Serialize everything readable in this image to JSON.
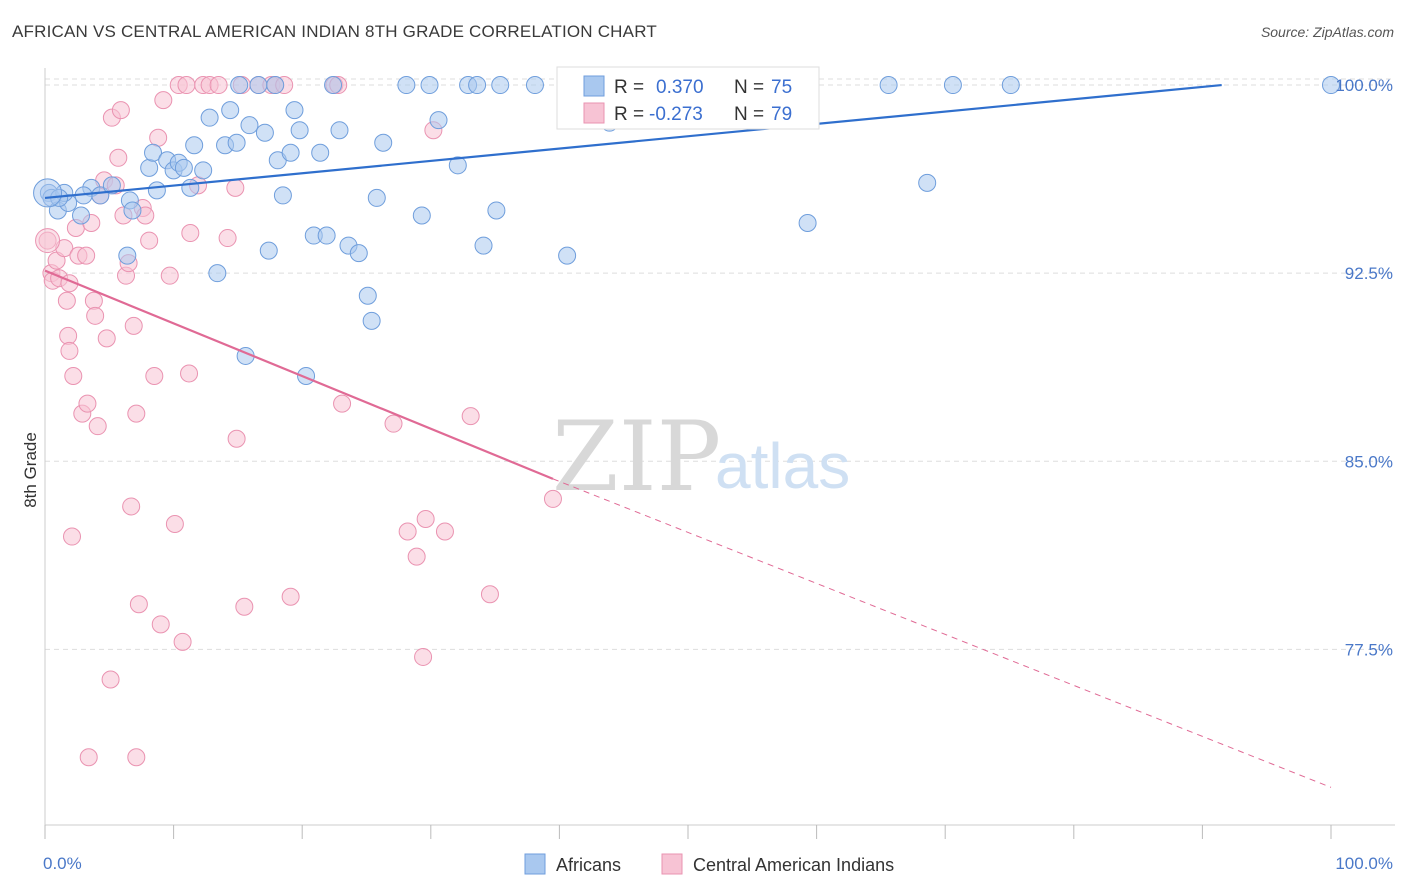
{
  "title": "AFRICAN VS CENTRAL AMERICAN INDIAN 8TH GRADE CORRELATION CHART",
  "source": "Source: ZipAtlas.com",
  "watermark": {
    "zip": "ZIP",
    "atlas": "atlas"
  },
  "legend": {
    "r_label": "R =",
    "n_label": "N =",
    "rows": [
      {
        "r": "0.370",
        "n": "75",
        "color": "#7aaee8"
      },
      {
        "r": "-0.273",
        "n": "79",
        "color": "#f4a7c0"
      }
    ]
  },
  "bottom_legend": [
    "Africans",
    "Central American Indians"
  ],
  "colors": {
    "blue_fill": "#a9c8ef",
    "blue_stroke": "#6f9edc",
    "blue_line": "#2f6fcd",
    "pink_fill": "#f7c3d4",
    "pink_stroke": "#ea93b1",
    "pink_line": "#e06a95",
    "grid": "#dddddd",
    "axis_text": "#4a78c8"
  },
  "chart_data": {
    "type": "scatter",
    "title": "AFRICAN VS CENTRAL AMERICAN INDIAN 8TH GRADE CORRELATION CHART",
    "xlabel": "",
    "ylabel": "8th Grade",
    "xlim": [
      0,
      100
    ],
    "ylim": [
      70.5,
      100.6
    ],
    "x_tick_labels": [
      "0.0%",
      "100.0%"
    ],
    "y_ticks": [
      77.5,
      85.0,
      92.5,
      100.0
    ],
    "y_tick_labels": [
      "77.5%",
      "85.0%",
      "92.5%",
      "100.0%"
    ],
    "grid": true,
    "legend_position": "top-center",
    "series": [
      {
        "name": "Africans",
        "r": 0.37,
        "n": 75,
        "trend": {
          "x": [
            0,
            91.5
          ],
          "y": [
            95.5,
            100.0
          ],
          "style": "solid"
        },
        "points": [
          [
            0.3,
            95.7
          ],
          [
            0.5,
            95.5
          ],
          [
            1.0,
            95.0
          ],
          [
            1.8,
            95.3
          ],
          [
            2.8,
            94.8
          ],
          [
            3.6,
            95.9
          ],
          [
            4.3,
            95.6
          ],
          [
            3.0,
            95.6
          ],
          [
            1.5,
            95.7
          ],
          [
            5.2,
            96.0
          ],
          [
            6.6,
            95.4
          ],
          [
            6.4,
            93.2
          ],
          [
            6.8,
            95.0
          ],
          [
            8.1,
            96.7
          ],
          [
            8.4,
            97.3
          ],
          [
            8.7,
            95.8
          ],
          [
            9.5,
            97.0
          ],
          [
            10.0,
            96.6
          ],
          [
            10.4,
            96.9
          ],
          [
            10.8,
            96.7
          ],
          [
            11.3,
            95.9
          ],
          [
            11.6,
            97.6
          ],
          [
            12.3,
            96.6
          ],
          [
            12.8,
            98.7
          ],
          [
            13.4,
            92.5
          ],
          [
            14.0,
            97.6
          ],
          [
            14.4,
            99.0
          ],
          [
            14.9,
            97.7
          ],
          [
            15.1,
            100.0
          ],
          [
            15.6,
            89.2
          ],
          [
            15.9,
            98.4
          ],
          [
            16.6,
            100.0
          ],
          [
            17.1,
            98.1
          ],
          [
            17.4,
            93.4
          ],
          [
            17.9,
            100.0
          ],
          [
            18.1,
            97.0
          ],
          [
            18.5,
            95.6
          ],
          [
            19.1,
            97.3
          ],
          [
            19.4,
            99.0
          ],
          [
            19.8,
            98.2
          ],
          [
            20.9,
            94.0
          ],
          [
            21.4,
            97.3
          ],
          [
            21.9,
            94.0
          ],
          [
            22.4,
            100.0
          ],
          [
            22.9,
            98.2
          ],
          [
            23.6,
            93.6
          ],
          [
            24.4,
            93.3
          ],
          [
            25.1,
            91.6
          ],
          [
            25.4,
            90.6
          ],
          [
            25.8,
            95.5
          ],
          [
            26.3,
            97.7
          ],
          [
            28.1,
            100.0
          ],
          [
            29.3,
            94.8
          ],
          [
            29.9,
            100.0
          ],
          [
            30.6,
            98.6
          ],
          [
            32.1,
            96.8
          ],
          [
            32.9,
            100.0
          ],
          [
            33.6,
            100.0
          ],
          [
            34.1,
            93.6
          ],
          [
            35.1,
            95.0
          ],
          [
            35.4,
            100.0
          ],
          [
            38.1,
            100.0
          ],
          [
            40.6,
            93.2
          ],
          [
            41.3,
            99.2
          ],
          [
            42.1,
            100.0
          ],
          [
            43.6,
            99.2
          ],
          [
            43.9,
            98.5
          ],
          [
            59.3,
            94.5
          ],
          [
            65.6,
            100.0
          ],
          [
            68.6,
            96.1
          ],
          [
            70.6,
            100.0
          ],
          [
            75.1,
            100.0
          ],
          [
            100.0,
            100.0
          ],
          [
            20.3,
            88.4
          ],
          [
            1.1,
            95.5
          ]
        ]
      },
      {
        "name": "Central American Indians",
        "r": -0.273,
        "n": 79,
        "trend": {
          "x": [
            0,
            39.5
          ],
          "y": [
            92.6,
            84.3
          ],
          "style": "solid",
          "dashed_to": {
            "x": 100,
            "y": 72.0
          }
        },
        "points": [
          [
            0.2,
            93.8
          ],
          [
            0.5,
            92.5
          ],
          [
            0.6,
            92.2
          ],
          [
            0.9,
            93.0
          ],
          [
            1.1,
            92.3
          ],
          [
            1.5,
            93.5
          ],
          [
            1.7,
            91.4
          ],
          [
            1.8,
            90.0
          ],
          [
            1.9,
            89.4
          ],
          [
            2.2,
            88.4
          ],
          [
            2.4,
            94.3
          ],
          [
            2.6,
            93.2
          ],
          [
            2.9,
            86.9
          ],
          [
            3.2,
            93.2
          ],
          [
            3.3,
            87.3
          ],
          [
            3.6,
            94.5
          ],
          [
            3.8,
            91.4
          ],
          [
            3.9,
            90.8
          ],
          [
            4.1,
            86.4
          ],
          [
            4.3,
            95.6
          ],
          [
            4.6,
            96.2
          ],
          [
            4.8,
            89.9
          ],
          [
            5.1,
            76.3
          ],
          [
            5.2,
            98.7
          ],
          [
            5.5,
            96.0
          ],
          [
            5.7,
            97.1
          ],
          [
            5.9,
            99.0
          ],
          [
            6.1,
            94.8
          ],
          [
            6.3,
            92.4
          ],
          [
            6.5,
            92.9
          ],
          [
            6.7,
            83.2
          ],
          [
            6.9,
            90.4
          ],
          [
            7.1,
            86.9
          ],
          [
            7.3,
            79.3
          ],
          [
            7.6,
            95.1
          ],
          [
            7.8,
            94.8
          ],
          [
            8.1,
            93.8
          ],
          [
            8.5,
            88.4
          ],
          [
            8.8,
            97.9
          ],
          [
            9.0,
            78.5
          ],
          [
            9.2,
            99.4
          ],
          [
            9.7,
            92.4
          ],
          [
            10.1,
            82.5
          ],
          [
            10.4,
            100.0
          ],
          [
            10.7,
            77.8
          ],
          [
            11.0,
            100.0
          ],
          [
            11.2,
            88.5
          ],
          [
            11.3,
            94.1
          ],
          [
            11.9,
            96.0
          ],
          [
            12.3,
            100.0
          ],
          [
            12.8,
            100.0
          ],
          [
            13.5,
            100.0
          ],
          [
            14.2,
            93.9
          ],
          [
            14.8,
            95.9
          ],
          [
            14.9,
            85.9
          ],
          [
            15.3,
            100.0
          ],
          [
            15.5,
            79.2
          ],
          [
            16.6,
            100.0
          ],
          [
            17.6,
            100.0
          ],
          [
            17.9,
            100.0
          ],
          [
            18.6,
            100.0
          ],
          [
            19.1,
            79.6
          ],
          [
            22.5,
            100.0
          ],
          [
            22.8,
            100.0
          ],
          [
            23.1,
            87.3
          ],
          [
            27.1,
            86.5
          ],
          [
            28.2,
            82.2
          ],
          [
            28.9,
            81.2
          ],
          [
            29.4,
            77.2
          ],
          [
            29.6,
            82.7
          ],
          [
            30.2,
            98.2
          ],
          [
            31.1,
            82.2
          ],
          [
            33.1,
            86.8
          ],
          [
            34.6,
            79.7
          ],
          [
            39.5,
            83.5
          ],
          [
            7.1,
            73.2
          ],
          [
            3.4,
            73.2
          ],
          [
            2.1,
            82.0
          ],
          [
            1.9,
            92.1
          ]
        ]
      }
    ]
  }
}
